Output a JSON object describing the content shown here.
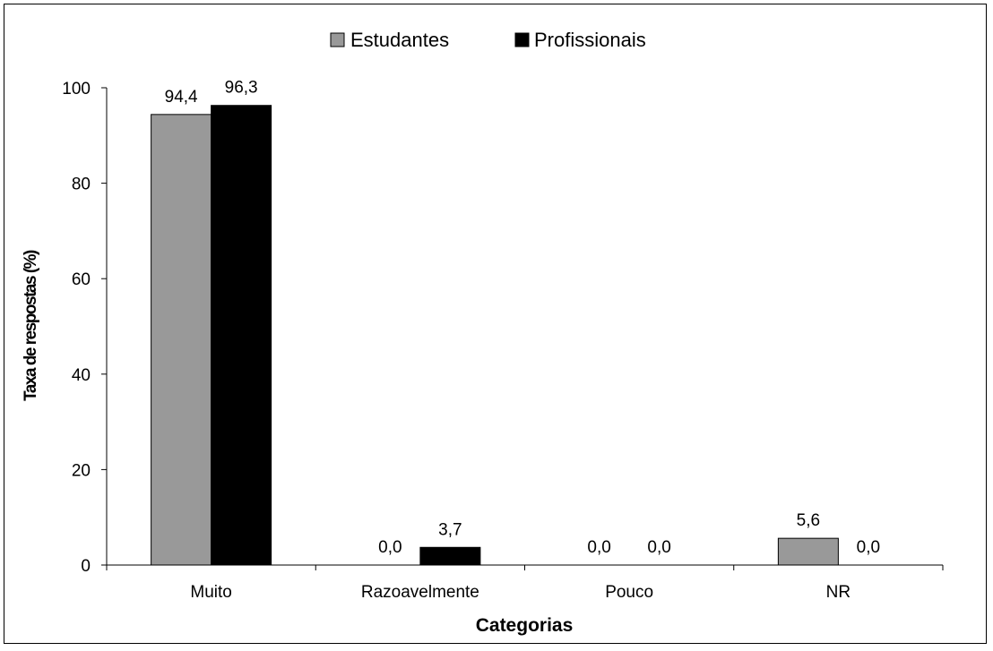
{
  "chart_data": {
    "type": "bar",
    "categories": [
      "Muito",
      "Razoavelmente",
      "Pouco",
      "NR"
    ],
    "series": [
      {
        "name": "Estudantes",
        "values": [
          94.4,
          0.0,
          0.0,
          5.6
        ],
        "labels": [
          "94,4",
          "0,0",
          "0,0",
          "5,6"
        ],
        "color": "#999999"
      },
      {
        "name": "Profissionais",
        "values": [
          96.3,
          3.7,
          0.0,
          0.0
        ],
        "labels": [
          "96,3",
          "3,7",
          "0,0",
          "0,0"
        ],
        "color": "#000000"
      }
    ],
    "xlabel": "Categorias",
    "ylabel": "Taxa de respostas (%)",
    "ylim": [
      0,
      100
    ],
    "yticks": [
      "0",
      "20",
      "40",
      "60",
      "80",
      "100"
    ],
    "grid": false,
    "legend_position": "top-center"
  }
}
